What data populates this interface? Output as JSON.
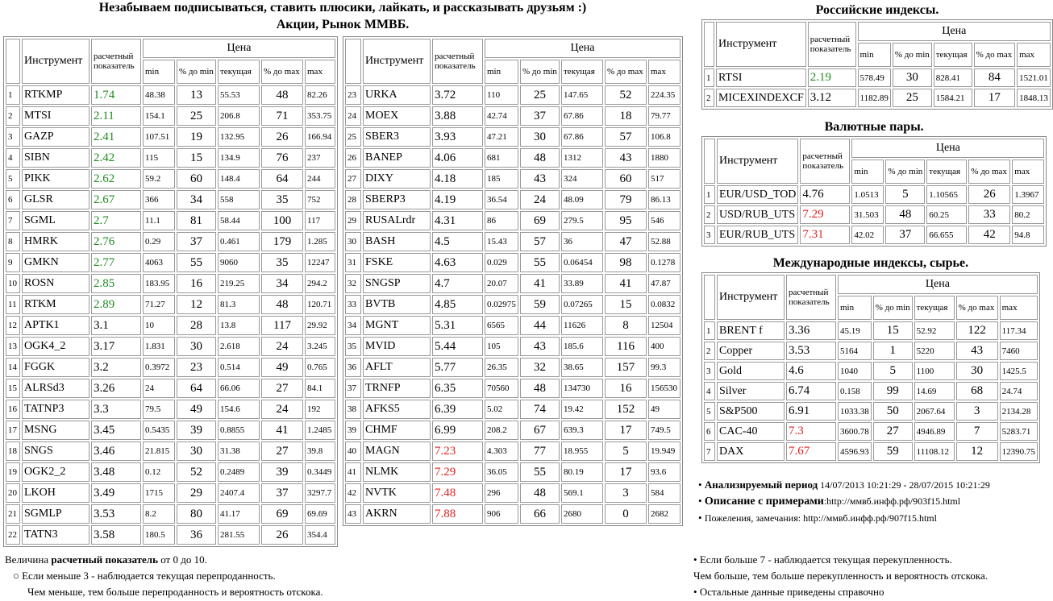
{
  "header": {
    "title": "Незабываем подписываться, ставить плюсики, лайкать, и рассказывать друзьям :)",
    "subtitle": "Акции, Рынок ММВБ."
  },
  "tables": [
    {
      "header": {
        "instrument": "Инструмент",
        "indicator": "расчетный показатель",
        "price": "Цена",
        "sub": [
          "min",
          "% до min",
          "текущая",
          "% до max",
          "max"
        ]
      },
      "indicator_colors": [
        "#1e8a1e",
        "#1e8a1e",
        "#1e8a1e",
        "#1e8a1e",
        "#1e8a1e",
        "#1e8a1e",
        "#1e8a1e",
        "#1e8a1e",
        "#1e8a1e",
        "#1e8a1e",
        "#1e8a1e",
        "#000000",
        "#000000",
        "#000000",
        "#000000",
        "#000000",
        "#000000",
        "#000000",
        "#000000",
        "#000000",
        "#000000",
        "#000000"
      ],
      "rows": [
        [
          1,
          "RTKMP",
          1.74,
          48.38,
          13,
          55.53,
          48,
          82.26
        ],
        [
          2,
          "MTSI",
          2.11,
          154.1,
          25,
          206.8,
          71,
          353.75
        ],
        [
          3,
          "GAZP",
          2.41,
          107.51,
          19,
          132.95,
          26,
          166.94
        ],
        [
          4,
          "SIBN",
          2.42,
          115,
          15,
          134.9,
          76,
          237
        ],
        [
          5,
          "PIKK",
          2.62,
          59.2,
          60,
          148.4,
          64,
          244
        ],
        [
          6,
          "GLSR",
          2.67,
          366,
          34,
          558,
          35,
          752
        ],
        [
          7,
          "SGML",
          2.7,
          11.1,
          81,
          58.44,
          100,
          117
        ],
        [
          8,
          "HMRK",
          2.76,
          0.29,
          37,
          0.461,
          179,
          1.285
        ],
        [
          9,
          "GMKN",
          2.77,
          4063,
          55,
          9060,
          35,
          12247
        ],
        [
          10,
          "ROSN",
          2.85,
          183.95,
          16,
          219.25,
          34,
          294.2
        ],
        [
          11,
          "RTKM",
          2.89,
          71.27,
          12,
          81.3,
          48,
          120.71
        ],
        [
          12,
          "APTK1",
          3.1,
          10,
          28,
          13.8,
          117,
          29.92
        ],
        [
          13,
          "OGK4_2",
          3.17,
          1.831,
          30,
          2.618,
          24,
          3.245
        ],
        [
          14,
          "FGGK",
          3.2,
          0.3972,
          23,
          0.514,
          49,
          0.765
        ],
        [
          15,
          "ALRSd3",
          3.26,
          24,
          64,
          66.06,
          27,
          84.1
        ],
        [
          16,
          "TATNP3",
          3.3,
          79.5,
          49,
          154.6,
          24,
          192
        ],
        [
          17,
          "MSNG",
          3.45,
          0.5435,
          39,
          0.8855,
          41,
          1.2485
        ],
        [
          18,
          "SNGS",
          3.46,
          21.815,
          30,
          31.38,
          27,
          39.8
        ],
        [
          19,
          "OGK2_2",
          3.48,
          0.12,
          52,
          0.2489,
          39,
          0.3449
        ],
        [
          20,
          "LKOH",
          3.49,
          1715,
          29,
          2407.4,
          37,
          3297.7
        ],
        [
          21,
          "SGMLP",
          3.53,
          8.2,
          80,
          41.17,
          69,
          69.69
        ],
        [
          22,
          "TATN3",
          3.58,
          180.5,
          36,
          281.55,
          26,
          354.4
        ]
      ]
    },
    {
      "header": {
        "instrument": "Инструмент",
        "indicator": "расчетный показатель",
        "price": "Цена",
        "sub": [
          "min",
          "% до min",
          "текущая",
          "% до max",
          "max"
        ]
      },
      "indicator_colors": [
        "#000000",
        "#000000",
        "#000000",
        "#000000",
        "#000000",
        "#000000",
        "#000000",
        "#000000",
        "#000000",
        "#000000",
        "#000000",
        "#000000",
        "#000000",
        "#000000",
        "#000000",
        "#000000",
        "#000000",
        "#e02020",
        "#e02020",
        "#e02020",
        "#e02020"
      ],
      "rows": [
        [
          23,
          "URKA",
          3.72,
          110,
          25,
          147.65,
          52,
          224.35
        ],
        [
          24,
          "MOEX",
          3.88,
          42.74,
          37,
          67.86,
          18,
          79.77
        ],
        [
          25,
          "SBER3",
          3.93,
          47.21,
          30,
          67.86,
          57,
          106.8
        ],
        [
          26,
          "BANEP",
          4.06,
          681,
          48,
          1312,
          43,
          1880
        ],
        [
          27,
          "DIXY",
          4.18,
          185,
          43,
          324,
          60,
          517
        ],
        [
          28,
          "SBERP3",
          4.19,
          36.54,
          24,
          48.09,
          79,
          86.13
        ],
        [
          29,
          "RUSALrdr",
          4.31,
          86,
          69,
          279.5,
          95,
          546
        ],
        [
          30,
          "BASH",
          4.5,
          15.43,
          57,
          36,
          47,
          52.88
        ],
        [
          31,
          "FSKE",
          4.63,
          0.029,
          55,
          0.06454,
          98,
          0.1278
        ],
        [
          32,
          "SNGSP",
          4.7,
          20.07,
          41,
          33.89,
          41,
          47.87
        ],
        [
          33,
          "BVTB",
          4.85,
          0.02975,
          59,
          0.07265,
          15,
          0.0832
        ],
        [
          34,
          "MGNT",
          5.31,
          6565,
          44,
          11626,
          8,
          12504
        ],
        [
          35,
          "MVID",
          5.44,
          105,
          43,
          185.6,
          116,
          400
        ],
        [
          36,
          "AFLT",
          5.77,
          26.35,
          32,
          38.65,
          157,
          99.3
        ],
        [
          37,
          "TRNFP",
          6.35,
          70560,
          48,
          134730,
          16,
          156530
        ],
        [
          38,
          "AFKS5",
          6.39,
          5.02,
          74,
          19.42,
          152,
          49
        ],
        [
          39,
          "CHMF",
          6.99,
          208.2,
          67,
          639.3,
          17,
          749.5
        ],
        [
          40,
          "MAGN",
          7.23,
          4.303,
          77,
          18.955,
          5,
          19.949
        ],
        [
          41,
          "NLMK",
          7.29,
          36.05,
          55,
          80.19,
          17,
          93.6
        ],
        [
          42,
          "NVTK",
          7.48,
          296,
          48,
          569.1,
          3,
          584
        ],
        [
          43,
          "AKRN",
          7.88,
          906,
          66,
          2680,
          0,
          2682
        ]
      ]
    },
    {
      "title": "Российские индексы.",
      "header": {
        "instrument": "Инструмент",
        "indicator": "расчетный показатель",
        "price": "Цена",
        "sub": [
          "min",
          "% до min",
          "текущая",
          "% до max",
          "max"
        ]
      },
      "indicator_colors": [
        "#1e8a1e",
        "#000000"
      ],
      "rows": [
        [
          1,
          "RTSI",
          2.19,
          578.49,
          30,
          828.41,
          84,
          1521.01
        ],
        [
          2,
          "MICEXINDEXCF",
          3.12,
          1182.89,
          25,
          1584.21,
          17,
          1848.13
        ]
      ]
    },
    {
      "title": "Валютные пары.",
      "header": {
        "instrument": "Инструмент",
        "indicator": "расчетный показатель",
        "price": "Цена",
        "sub": [
          "min",
          "% до min",
          "текущая",
          "% до max",
          "max"
        ]
      },
      "indicator_colors": [
        "#000000",
        "#e02020",
        "#e02020"
      ],
      "rows": [
        [
          1,
          "EUR/USD_TOD",
          4.76,
          1.0513,
          5,
          1.10565,
          26,
          1.3967
        ],
        [
          2,
          "USD/RUB_UTS",
          7.29,
          31.503,
          48,
          60.25,
          33,
          80.2
        ],
        [
          3,
          "EUR/RUB_UTS",
          7.31,
          42.02,
          37,
          66.655,
          42,
          94.8
        ]
      ]
    },
    {
      "title": "Международные индексы, сырье.",
      "header": {
        "instrument": "Инструмент",
        "indicator": "расчетный показатель",
        "price": "Цена",
        "sub": [
          "min",
          "% до min",
          "текущая",
          "% до max",
          "max"
        ]
      },
      "indicator_colors": [
        "#000000",
        "#000000",
        "#000000",
        "#000000",
        "#000000",
        "#e02020",
        "#e02020"
      ],
      "rows": [
        [
          1,
          "BRENT f",
          3.36,
          45.19,
          15,
          52.92,
          122,
          117.34
        ],
        [
          2,
          "Copper",
          3.53,
          5164,
          1,
          5220,
          43,
          7460
        ],
        [
          3,
          "Gold",
          4.6,
          1040,
          5,
          1100,
          30,
          1425.5
        ],
        [
          4,
          "Silver",
          6.74,
          0.158,
          99,
          14.69,
          68,
          24.74
        ],
        [
          5,
          "S&P500",
          6.91,
          1033.38,
          50,
          2067.64,
          3,
          2134.28
        ],
        [
          6,
          "CAC-40",
          7.3,
          3600.78,
          27,
          4946.89,
          7,
          5283.71
        ],
        [
          7,
          "DAX",
          7.67,
          4596.93,
          59,
          11108.12,
          12,
          12390.75
        ]
      ]
    }
  ],
  "notes": [
    {
      "bold": "Анализируемый период",
      "text": " 14/07/2013 10:21:29 - 28/07/2015 10:21:29"
    },
    {
      "bold": "Описание с примерами",
      "text": ":http://ммвб.инфф.рф/903f15.html"
    },
    {
      "text": "Пожеления, замечания: http://ммвб.инфф.рф/907f15.html"
    }
  ],
  "footer_left": {
    "intro": "Величина ",
    "bold": "расчетный показатель",
    "tail": " от 0 до 10.",
    "bullet": "Если меньше 3 - наблюдается текущая перепроданность.",
    "line": "Чем меньше, тем больше перепроданность и вероятность отскока."
  },
  "footer_right": {
    "bullet": "Если больше 7 - наблюдается текущая перекупленность.",
    "line": "Чем больше, тем больше перекупленность и вероятность отскока.",
    "bullet2": "Остальные данные приведены справочно"
  }
}
